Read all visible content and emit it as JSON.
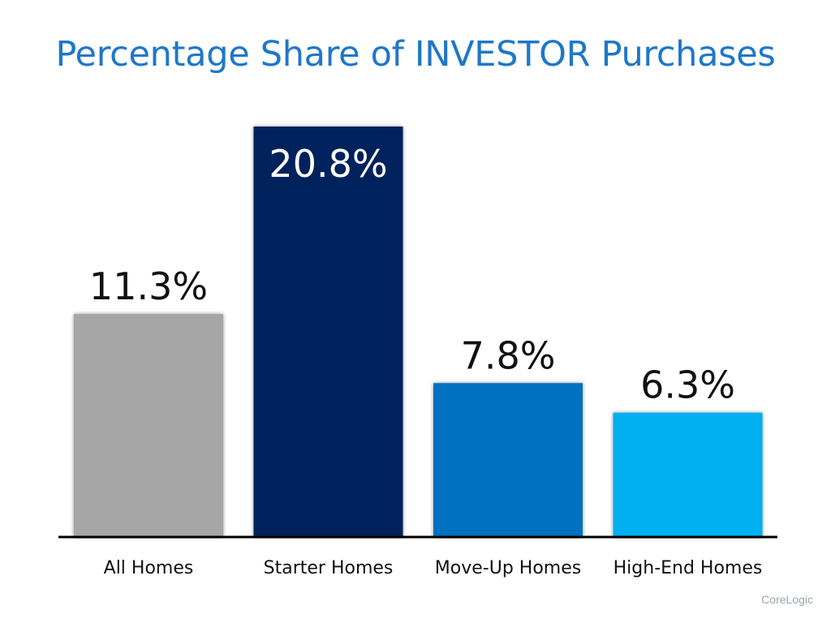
{
  "title": "Percentage Share of INVESTOR Purchases",
  "source": "CoreLogic",
  "chart_data": {
    "type": "bar",
    "title": "Percentage Share of INVESTOR Purchases",
    "categories": [
      "All Homes",
      "Starter Homes",
      "Move-Up Homes",
      "High-End Homes"
    ],
    "values": [
      11.3,
      20.8,
      7.8,
      6.3
    ],
    "value_labels": [
      "11.3%",
      "20.8%",
      "7.8%",
      "6.3%"
    ],
    "colors": [
      "#a6a6a6",
      "#00205b",
      "#0070c0",
      "#00b0f0"
    ],
    "label_colors": [
      "#111111",
      "#ffffff",
      "#111111",
      "#111111"
    ],
    "xlabel": "",
    "ylabel": "",
    "ylim": [
      0,
      21.5
    ],
    "grid": false,
    "legend": "none"
  }
}
